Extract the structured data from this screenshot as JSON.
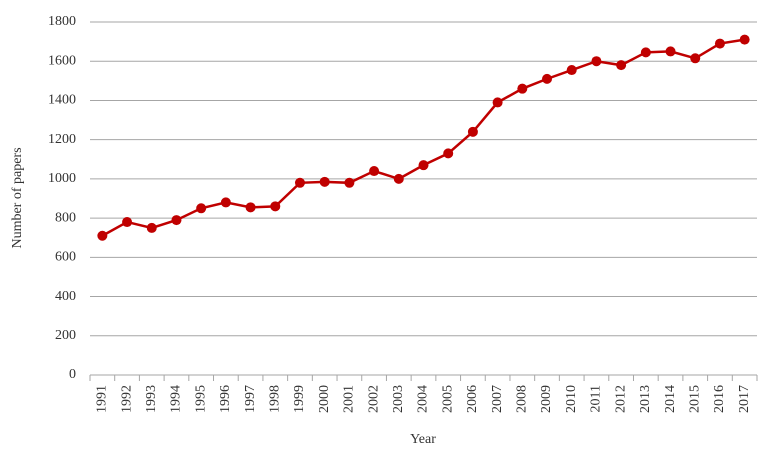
{
  "chart_data": {
    "type": "line",
    "x_label": "Year",
    "y_label": "Number of papers",
    "categories": [
      "1991",
      "1992",
      "1993",
      "1994",
      "1995",
      "1996",
      "1997",
      "1998",
      "1999",
      "2000",
      "2001",
      "2002",
      "2003",
      "2004",
      "2005",
      "2006",
      "2007",
      "2008",
      "2009",
      "2010",
      "2011",
      "2012",
      "2013",
      "2014",
      "2015",
      "2016",
      "2017"
    ],
    "series": [
      {
        "name": "Number of papers",
        "color": "#c00000",
        "values": [
          710,
          780,
          750,
          790,
          850,
          880,
          855,
          860,
          980,
          985,
          980,
          1040,
          1000,
          1070,
          1130,
          1240,
          1390,
          1460,
          1510,
          1555,
          1600,
          1580,
          1645,
          1650,
          1615,
          1690,
          1710
        ]
      }
    ],
    "ylim": [
      0,
      1800
    ],
    "yticks": [
      0,
      200,
      400,
      600,
      800,
      1000,
      1200,
      1400,
      1600,
      1800
    ],
    "grid": true
  }
}
